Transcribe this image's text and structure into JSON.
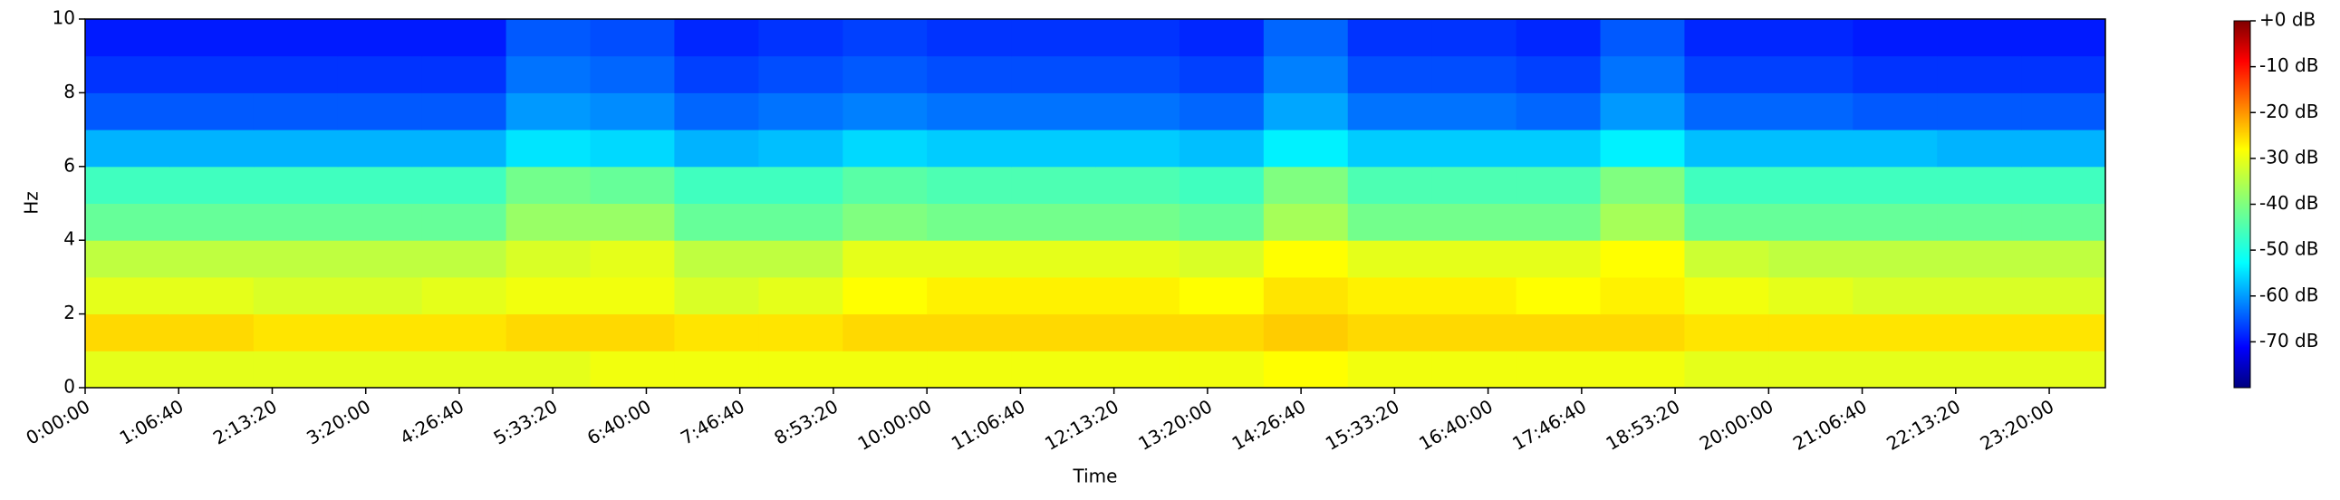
{
  "chart_data": {
    "type": "spectrogram",
    "xlabel": "Time",
    "ylabel": "Hz",
    "colormap": "jet",
    "xlim": [
      0,
      86400
    ],
    "ylim": [
      0,
      10
    ],
    "clim": [
      -80,
      0
    ],
    "xticks": [
      {
        "value": 0,
        "label": "0:00:00"
      },
      {
        "value": 4000,
        "label": "1:06:40"
      },
      {
        "value": 8000,
        "label": "2:13:20"
      },
      {
        "value": 12000,
        "label": "3:20:00"
      },
      {
        "value": 16000,
        "label": "4:26:40"
      },
      {
        "value": 20000,
        "label": "5:33:20"
      },
      {
        "value": 24000,
        "label": "6:40:00"
      },
      {
        "value": 28000,
        "label": "7:46:40"
      },
      {
        "value": 32000,
        "label": "8:53:20"
      },
      {
        "value": 36000,
        "label": "10:00:00"
      },
      {
        "value": 40000,
        "label": "11:06:40"
      },
      {
        "value": 44000,
        "label": "12:13:20"
      },
      {
        "value": 48000,
        "label": "13:20:00"
      },
      {
        "value": 52000,
        "label": "14:26:40"
      },
      {
        "value": 56000,
        "label": "15:33:20"
      },
      {
        "value": 60000,
        "label": "16:40:00"
      },
      {
        "value": 64000,
        "label": "17:46:40"
      },
      {
        "value": 68000,
        "label": "18:53:20"
      },
      {
        "value": 72000,
        "label": "20:00:00"
      },
      {
        "value": 76000,
        "label": "21:06:40"
      },
      {
        "value": 80000,
        "label": "22:13:20"
      },
      {
        "value": 84000,
        "label": "23:20:00"
      }
    ],
    "yticks": [
      0,
      2,
      4,
      6,
      8,
      10
    ],
    "cticks": [
      {
        "value": 0,
        "label": "+0 dB"
      },
      {
        "value": -10,
        "label": "-10 dB"
      },
      {
        "value": -20,
        "label": "-20 dB"
      },
      {
        "value": -30,
        "label": "-30 dB"
      },
      {
        "value": -40,
        "label": "-40 dB"
      },
      {
        "value": -50,
        "label": "-50 dB"
      },
      {
        "value": -60,
        "label": "-60 dB"
      },
      {
        "value": -70,
        "label": "-70 dB"
      }
    ],
    "time_bins": [
      0,
      3600,
      7200,
      10800,
      14400,
      18000,
      21600,
      25200,
      28800,
      32400,
      36000,
      39600,
      43200,
      46800,
      50400,
      54000,
      57600,
      61200,
      64800,
      68400,
      72000,
      75600,
      79200,
      82800,
      86400
    ],
    "frequency_bins": [
      0,
      1,
      2,
      3,
      4,
      5,
      6,
      7,
      8,
      9,
      10
    ],
    "values": [
      [
        -32,
        -32,
        -32,
        -32,
        -32,
        -32,
        -31,
        -31,
        -31,
        -31,
        -31,
        -31,
        -31,
        -31,
        -30,
        -31,
        -31,
        -31,
        -31,
        -32,
        -32,
        -32,
        -32,
        -32
      ],
      [
        -27,
        -27,
        -28,
        -28,
        -28,
        -27,
        -27,
        -28,
        -28,
        -27,
        -27,
        -27,
        -27,
        -27,
        -26,
        -27,
        -27,
        -27,
        -27,
        -28,
        -28,
        -28,
        -28,
        -28
      ],
      [
        -32,
        -32,
        -33,
        -33,
        -32,
        -31,
        -31,
        -33,
        -32,
        -30,
        -29,
        -29,
        -29,
        -30,
        -28,
        -29,
        -29,
        -30,
        -29,
        -31,
        -32,
        -33,
        -33,
        -33
      ],
      [
        -35,
        -35,
        -35,
        -35,
        -35,
        -33,
        -32,
        -35,
        -35,
        -32,
        -32,
        -32,
        -32,
        -33,
        -30,
        -32,
        -32,
        -32,
        -30,
        -34,
        -35,
        -35,
        -35,
        -35
      ],
      [
        -42,
        -42,
        -42,
        -42,
        -42,
        -38,
        -38,
        -42,
        -42,
        -40,
        -41,
        -41,
        -41,
        -42,
        -37,
        -41,
        -41,
        -41,
        -37,
        -42,
        -42,
        -42,
        -42,
        -42
      ],
      [
        -45,
        -45,
        -45,
        -45,
        -45,
        -41,
        -42,
        -45,
        -45,
        -43,
        -44,
        -44,
        -44,
        -45,
        -40,
        -44,
        -44,
        -44,
        -40,
        -45,
        -45,
        -45,
        -45,
        -45
      ],
      [
        -56,
        -56,
        -56,
        -56,
        -56,
        -52,
        -53,
        -56,
        -55,
        -53,
        -54,
        -54,
        -54,
        -55,
        -51,
        -54,
        -54,
        -54,
        -51,
        -55,
        -55,
        -55,
        -56,
        -56
      ],
      [
        -63,
        -63,
        -63,
        -63,
        -63,
        -58,
        -59,
        -62,
        -61,
        -60,
        -61,
        -61,
        -61,
        -62,
        -57,
        -61,
        -61,
        -62,
        -58,
        -62,
        -62,
        -63,
        -63,
        -63
      ],
      [
        -66,
        -66,
        -66,
        -66,
        -66,
        -61,
        -62,
        -65,
        -64,
        -63,
        -64,
        -64,
        -64,
        -65,
        -60,
        -64,
        -64,
        -65,
        -61,
        -65,
        -65,
        -66,
        -66,
        -66
      ],
      [
        -68,
        -68,
        -68,
        -68,
        -68,
        -63,
        -64,
        -67,
        -66,
        -65,
        -66,
        -66,
        -66,
        -67,
        -62,
        -66,
        -66,
        -67,
        -63,
        -67,
        -67,
        -68,
        -68,
        -68
      ]
    ]
  }
}
